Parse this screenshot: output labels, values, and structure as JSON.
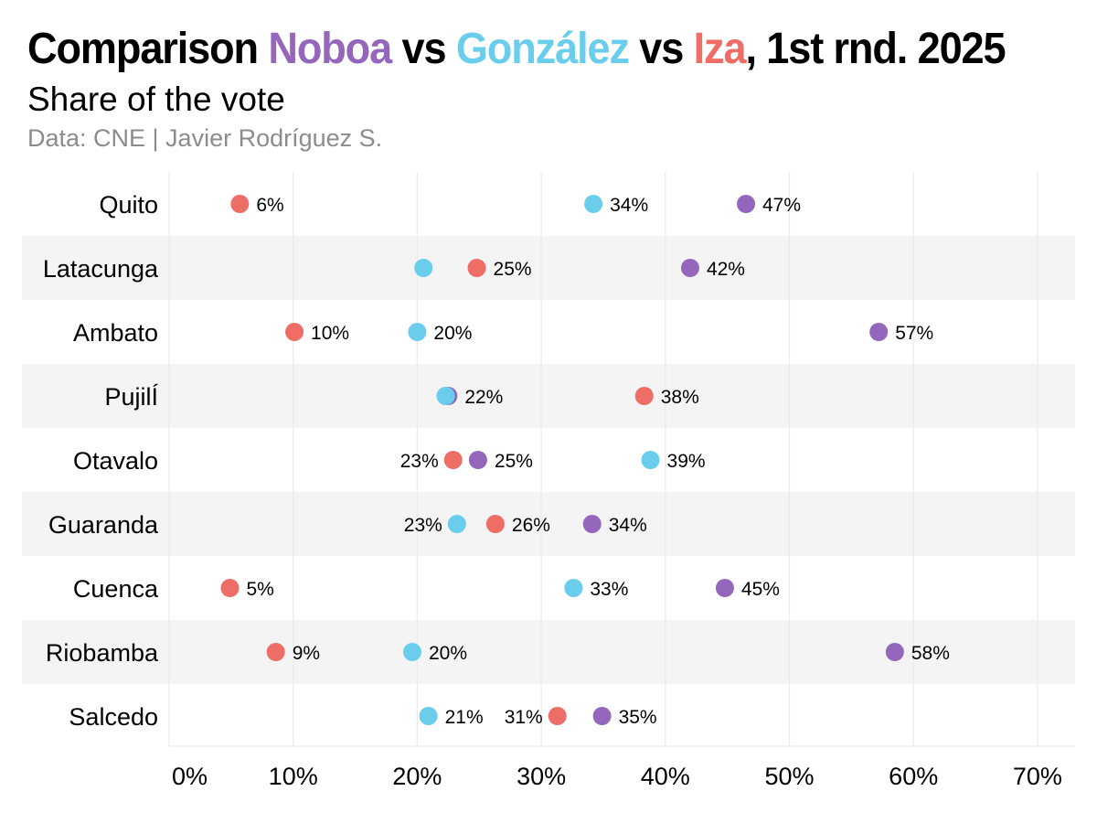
{
  "header": {
    "title_prefix": "Comparison ",
    "title_noboa": "Noboa",
    "title_vs1": " vs ",
    "title_gonzalez": "González",
    "title_vs2": " vs ",
    "title_iza": "Iza",
    "title_suffix": ", 1st rnd. 2025",
    "subtitle": "Share of the vote",
    "caption": "Data: CNE | Javier Rodríguez S."
  },
  "colors": {
    "noboa": "#9467bd",
    "gonzalez": "#6acdec",
    "iza": "#ee6d66",
    "band": "#f4f4f4",
    "grid": "#ebebeb"
  },
  "chart_data": {
    "type": "scatter",
    "title": "Comparison Noboa vs González vs Iza, 1st rnd. 2025",
    "subtitle": "Share of the vote",
    "caption": "Data: CNE | Javier Rodríguez S.",
    "xlim": [
      0,
      73
    ],
    "x_ticks": [
      0,
      10,
      20,
      30,
      40,
      50,
      60,
      70
    ],
    "x_tick_labels": [
      "0%",
      "10%",
      "20%",
      "30%",
      "40%",
      "50%",
      "60%",
      "70%"
    ],
    "grid": true,
    "categories": [
      "Quito",
      "Latacunga",
      "Ambato",
      "PujilÍ",
      "Otavalo",
      "Guaranda",
      "Cuenca",
      "Riobamba",
      "Salcedo"
    ],
    "series": [
      {
        "name": "Noboa",
        "color": "#9467bd",
        "values": [
          46.5,
          42,
          57.2,
          22.5,
          24.9,
          34.1,
          44.8,
          58.5,
          34.9
        ],
        "labels": [
          "47%",
          "42%",
          "57%",
          "22%",
          "25%",
          "34%",
          "45%",
          "58%",
          "35%"
        ],
        "label_side": [
          "right",
          "right",
          "right",
          "right",
          "right",
          "right",
          "right",
          "right",
          "right"
        ]
      },
      {
        "name": "González",
        "color": "#6acdec",
        "values": [
          34.2,
          20.5,
          20.0,
          22.3,
          38.8,
          23.2,
          32.6,
          19.6,
          20.9
        ],
        "labels": [
          "34%",
          "",
          "20%",
          "",
          "39%",
          "23%",
          "33%",
          "20%",
          "21%"
        ],
        "label_side": [
          "right",
          "right",
          "right",
          "right",
          "right",
          "left",
          "right",
          "right",
          "right"
        ]
      },
      {
        "name": "Iza",
        "color": "#ee6d66",
        "values": [
          5.7,
          24.8,
          10.1,
          38.3,
          22.9,
          26.3,
          4.9,
          8.6,
          31.3
        ],
        "labels": [
          "6%",
          "25%",
          "10%",
          "38%",
          "23%",
          "26%",
          "5%",
          "9%",
          "31%"
        ],
        "label_side": [
          "right",
          "right",
          "right",
          "right",
          "left",
          "right",
          "right",
          "right",
          "left"
        ]
      }
    ]
  }
}
